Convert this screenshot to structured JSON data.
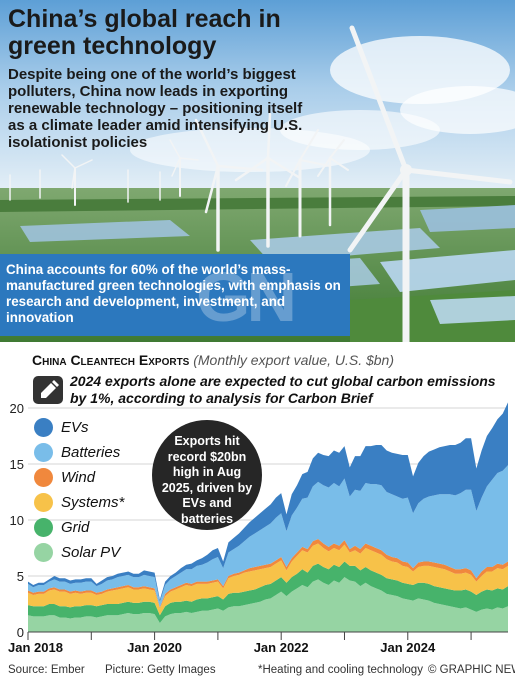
{
  "header": {
    "title": "China’s global reach in green technology",
    "subtitle": "Despite being one of the world’s biggest polluters, China now leads in exporting renewable technology – positioning itself as a climate leader amid intensifying U.S. isolationist policies",
    "callout": "China accounts for 60% of the world’s mass-manufactured green technologies, with emphasis on research and development, investment, and innovation",
    "watermark": "GN"
  },
  "chart_header": {
    "title": "China Cleantech Exports",
    "subtitle": "(Monthly export value, U.S. $bn)",
    "note": "2024 exports alone are expected to cut global carbon emissions by 1%, according to analysis for Carbon Brief",
    "note_icon": "pencil-icon"
  },
  "annotation": "Exports hit record $20bn high in Aug 2025, driven by EVs and batteries",
  "footer": {
    "source": "Source: Ember",
    "picture": "Picture: Getty Images",
    "footnote": "*Heating and cooling technology",
    "brand": "© GRAPHIC NEWS"
  },
  "colors": {
    "evs": "#3a7fc3",
    "batteries": "#79bde9",
    "wind": "#f0883d",
    "systems": "#f7c249",
    "grid": "#47b36b",
    "solar": "#96d4a3",
    "callout": "#2c78be",
    "sky": "#7fb6e0",
    "field": "#5f8f46"
  },
  "chart_data": {
    "type": "area",
    "stacked": true,
    "x_start": "2018-01",
    "x_end": "2025-08",
    "frequency": "monthly",
    "ylim": [
      0,
      20
    ],
    "yticks": [
      "0",
      "5",
      "10",
      "15",
      "20"
    ],
    "xticks": [
      "Jan 2018",
      "Jan 2020",
      "Jan 2022",
      "Jan 2024"
    ],
    "grid": true,
    "legend": "top-left",
    "series": [
      {
        "name": "Solar PV",
        "key": "solar",
        "values": [
          1.5,
          1.4,
          1.4,
          1.4,
          1.5,
          1.5,
          1.3,
          1.3,
          1.2,
          1.3,
          1.3,
          1.4,
          1.4,
          1.3,
          1.4,
          1.5,
          1.5,
          1.5,
          1.6,
          1.7,
          1.6,
          1.6,
          1.7,
          1.7,
          1.6,
          0.8,
          1.4,
          1.6,
          1.7,
          1.7,
          1.8,
          1.7,
          1.8,
          1.9,
          1.9,
          2.0,
          2.1,
          1.9,
          2.2,
          2.3,
          2.3,
          2.4,
          2.5,
          2.6,
          2.7,
          2.9,
          3.0,
          3.3,
          3.6,
          3.2,
          3.6,
          3.9,
          4.2,
          4.0,
          4.5,
          4.7,
          4.4,
          4.2,
          4.6,
          4.4,
          4.9,
          4.6,
          4.5,
          4.1,
          4.4,
          4.1,
          3.9,
          3.7,
          3.4,
          3.3,
          3.2,
          3.0,
          2.9,
          2.8,
          3.0,
          2.9,
          2.8,
          2.6,
          2.5,
          2.4,
          2.3,
          2.2,
          2.1,
          2.2,
          2.0,
          1.8,
          2.0,
          2.1,
          2.0,
          2.2,
          2.1,
          2.3
        ]
      },
      {
        "name": "Grid",
        "key": "grid",
        "values": [
          0.9,
          0.9,
          0.9,
          0.9,
          1.0,
          1.0,
          1.0,
          1.0,
          1.0,
          1.0,
          1.0,
          1.0,
          1.0,
          1.0,
          1.0,
          1.0,
          1.0,
          1.0,
          1.0,
          1.0,
          1.0,
          1.0,
          1.0,
          1.0,
          1.0,
          0.7,
          0.9,
          1.0,
          1.0,
          1.0,
          1.0,
          1.0,
          1.1,
          1.1,
          1.1,
          1.1,
          1.1,
          1.0,
          1.2,
          1.2,
          1.2,
          1.2,
          1.2,
          1.2,
          1.3,
          1.3,
          1.3,
          1.3,
          1.3,
          1.2,
          1.3,
          1.3,
          1.4,
          1.3,
          1.4,
          1.4,
          1.4,
          1.4,
          1.4,
          1.4,
          1.4,
          1.3,
          1.4,
          1.4,
          1.4,
          1.4,
          1.4,
          1.4,
          1.4,
          1.4,
          1.4,
          1.4,
          1.4,
          1.4,
          1.4,
          1.5,
          1.5,
          1.5,
          1.5,
          1.5,
          1.5,
          1.5,
          1.6,
          1.6,
          1.6,
          1.5,
          1.6,
          1.7,
          1.7,
          1.7,
          1.7,
          1.8
        ]
      },
      {
        "name": "Systems*",
        "key": "systems",
        "values": [
          1.1,
          1.0,
          1.1,
          1.1,
          1.2,
          1.3,
          1.3,
          1.3,
          1.2,
          1.2,
          1.1,
          1.1,
          1.1,
          1.0,
          1.0,
          1.1,
          1.2,
          1.3,
          1.3,
          1.3,
          1.2,
          1.2,
          1.2,
          1.1,
          1.1,
          0.6,
          0.9,
          1.0,
          1.1,
          1.3,
          1.4,
          1.4,
          1.4,
          1.3,
          1.3,
          1.3,
          1.3,
          1.0,
          1.4,
          1.5,
          1.6,
          1.7,
          1.7,
          1.7,
          1.6,
          1.5,
          1.5,
          1.5,
          1.5,
          1.1,
          1.4,
          1.6,
          1.7,
          1.8,
          1.8,
          1.8,
          1.7,
          1.6,
          1.5,
          1.5,
          1.5,
          1.2,
          1.4,
          1.5,
          1.7,
          1.8,
          1.8,
          1.8,
          1.7,
          1.6,
          1.6,
          1.5,
          1.5,
          1.2,
          1.4,
          1.5,
          1.6,
          1.7,
          1.7,
          1.7,
          1.6,
          1.5,
          1.5,
          1.5,
          1.5,
          1.2,
          1.4,
          1.6,
          1.7,
          1.8,
          1.8,
          1.8
        ]
      },
      {
        "name": "Wind",
        "key": "wind",
        "values": [
          0.2,
          0.2,
          0.2,
          0.2,
          0.2,
          0.2,
          0.2,
          0.2,
          0.2,
          0.2,
          0.2,
          0.2,
          0.2,
          0.2,
          0.2,
          0.2,
          0.2,
          0.2,
          0.2,
          0.2,
          0.2,
          0.2,
          0.2,
          0.2,
          0.2,
          0.1,
          0.2,
          0.2,
          0.2,
          0.2,
          0.2,
          0.2,
          0.2,
          0.2,
          0.2,
          0.2,
          0.2,
          0.2,
          0.2,
          0.2,
          0.2,
          0.2,
          0.3,
          0.3,
          0.3,
          0.3,
          0.3,
          0.3,
          0.3,
          0.3,
          0.3,
          0.3,
          0.3,
          0.3,
          0.4,
          0.4,
          0.4,
          0.4,
          0.4,
          0.4,
          0.4,
          0.3,
          0.4,
          0.4,
          0.4,
          0.4,
          0.4,
          0.4,
          0.4,
          0.4,
          0.4,
          0.4,
          0.4,
          0.3,
          0.4,
          0.4,
          0.4,
          0.4,
          0.4,
          0.4,
          0.4,
          0.4,
          0.4,
          0.4,
          0.4,
          0.3,
          0.4,
          0.4,
          0.4,
          0.4,
          0.4,
          0.4
        ]
      },
      {
        "name": "Batteries",
        "key": "batteries",
        "values": [
          0.6,
          0.5,
          0.6,
          0.6,
          0.6,
          0.7,
          0.7,
          0.7,
          0.7,
          0.7,
          0.8,
          0.8,
          0.8,
          0.6,
          0.7,
          0.8,
          0.8,
          0.9,
          0.9,
          0.9,
          0.9,
          0.9,
          1.0,
          1.0,
          1.0,
          0.5,
          0.8,
          0.9,
          1.0,
          1.1,
          1.2,
          1.3,
          1.4,
          1.5,
          1.7,
          1.9,
          2.0,
          1.6,
          2.1,
          2.2,
          2.4,
          2.6,
          2.8,
          3.0,
          3.2,
          3.4,
          3.6,
          3.8,
          3.9,
          3.2,
          3.8,
          4.0,
          4.3,
          4.6,
          4.9,
          5.1,
          5.2,
          5.3,
          5.4,
          5.3,
          5.5,
          4.7,
          5.0,
          5.2,
          5.4,
          5.5,
          5.7,
          5.8,
          5.6,
          5.6,
          5.5,
          5.6,
          5.8,
          4.9,
          5.3,
          5.6,
          5.8,
          6.0,
          6.2,
          6.3,
          6.5,
          6.6,
          6.8,
          7.0,
          7.2,
          6.0,
          6.6,
          7.2,
          7.8,
          8.1,
          8.4,
          8.6
        ]
      },
      {
        "name": "EVs",
        "key": "evs",
        "values": [
          0.2,
          0.2,
          0.2,
          0.2,
          0.2,
          0.3,
          0.3,
          0.3,
          0.3,
          0.3,
          0.3,
          0.3,
          0.3,
          0.2,
          0.3,
          0.3,
          0.3,
          0.3,
          0.3,
          0.3,
          0.3,
          0.3,
          0.4,
          0.4,
          0.4,
          0.2,
          0.3,
          0.3,
          0.3,
          0.4,
          0.4,
          0.5,
          0.5,
          0.6,
          0.7,
          0.8,
          0.8,
          0.6,
          0.9,
          1.0,
          1.1,
          1.2,
          1.3,
          1.4,
          1.5,
          1.6,
          1.7,
          1.8,
          1.8,
          1.5,
          1.9,
          2.0,
          2.2,
          2.3,
          2.5,
          2.6,
          2.7,
          2.8,
          2.9,
          3.0,
          2.9,
          2.6,
          3.0,
          3.1,
          3.3,
          3.4,
          3.5,
          3.6,
          3.7,
          3.7,
          3.8,
          3.9,
          3.8,
          3.3,
          3.6,
          3.8,
          4.0,
          4.1,
          4.2,
          4.3,
          4.4,
          4.5,
          4.5,
          4.6,
          4.6,
          3.8,
          4.2,
          4.5,
          4.6,
          4.8,
          5.1,
          5.6
        ]
      }
    ]
  }
}
